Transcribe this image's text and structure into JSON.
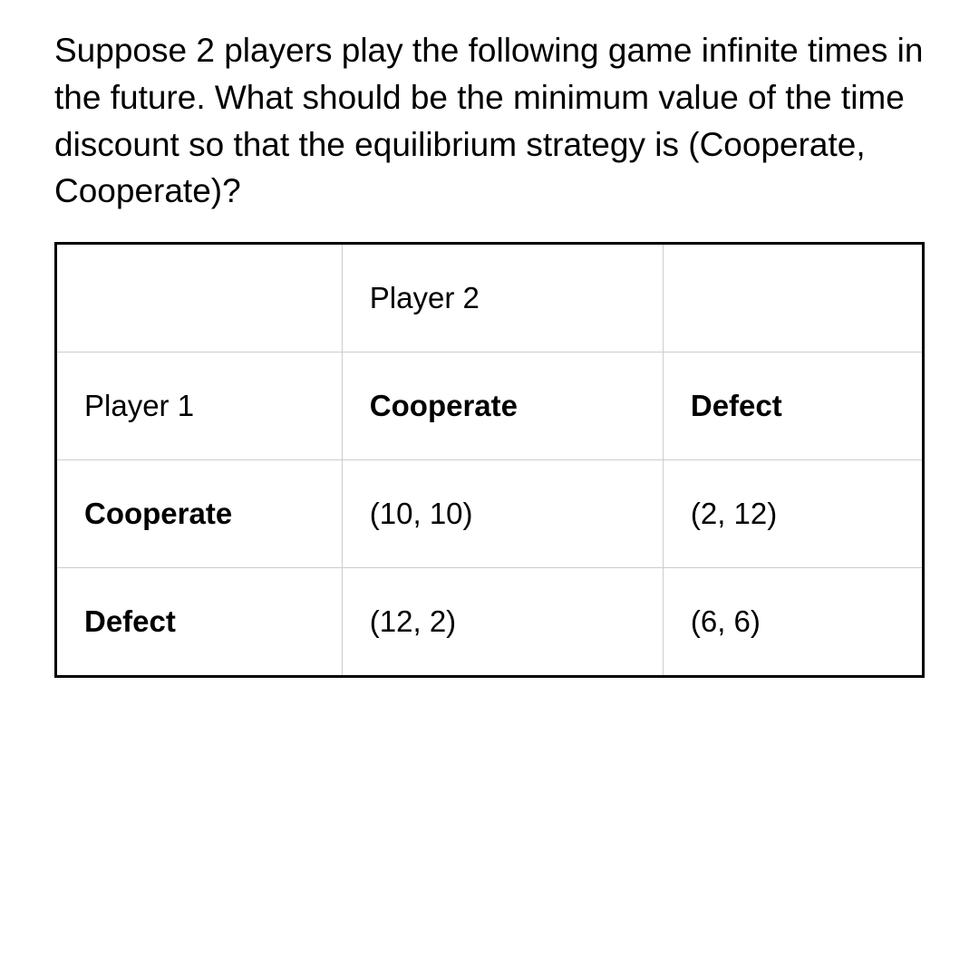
{
  "question": {
    "text": "Suppose 2 players play the following game infinite times in the future. What should be the minimum value of the time discount so that the equilibrium strategy is (Cooperate, Cooperate)?"
  },
  "table": {
    "type": "table",
    "background_color": "#ffffff",
    "border_color": "#000000",
    "inner_border_color": "#cccccc",
    "text_color": "#000000",
    "font_size": 33,
    "rows": [
      {
        "cells": [
          {
            "text": "",
            "bold": false
          },
          {
            "text": "Player 2",
            "bold": false
          },
          {
            "text": "",
            "bold": false
          }
        ]
      },
      {
        "cells": [
          {
            "text": "Player 1",
            "bold": false
          },
          {
            "text": "Cooperate",
            "bold": true
          },
          {
            "text": "Defect",
            "bold": true
          }
        ]
      },
      {
        "cells": [
          {
            "text": "Cooperate",
            "bold": true
          },
          {
            "text": "(10, 10)",
            "bold": false
          },
          {
            "text": "(2, 12)",
            "bold": false
          }
        ]
      },
      {
        "cells": [
          {
            "text": "Defect",
            "bold": true
          },
          {
            "text": "(12, 2)",
            "bold": false
          },
          {
            "text": "(6, 6)",
            "bold": false
          }
        ]
      }
    ]
  }
}
